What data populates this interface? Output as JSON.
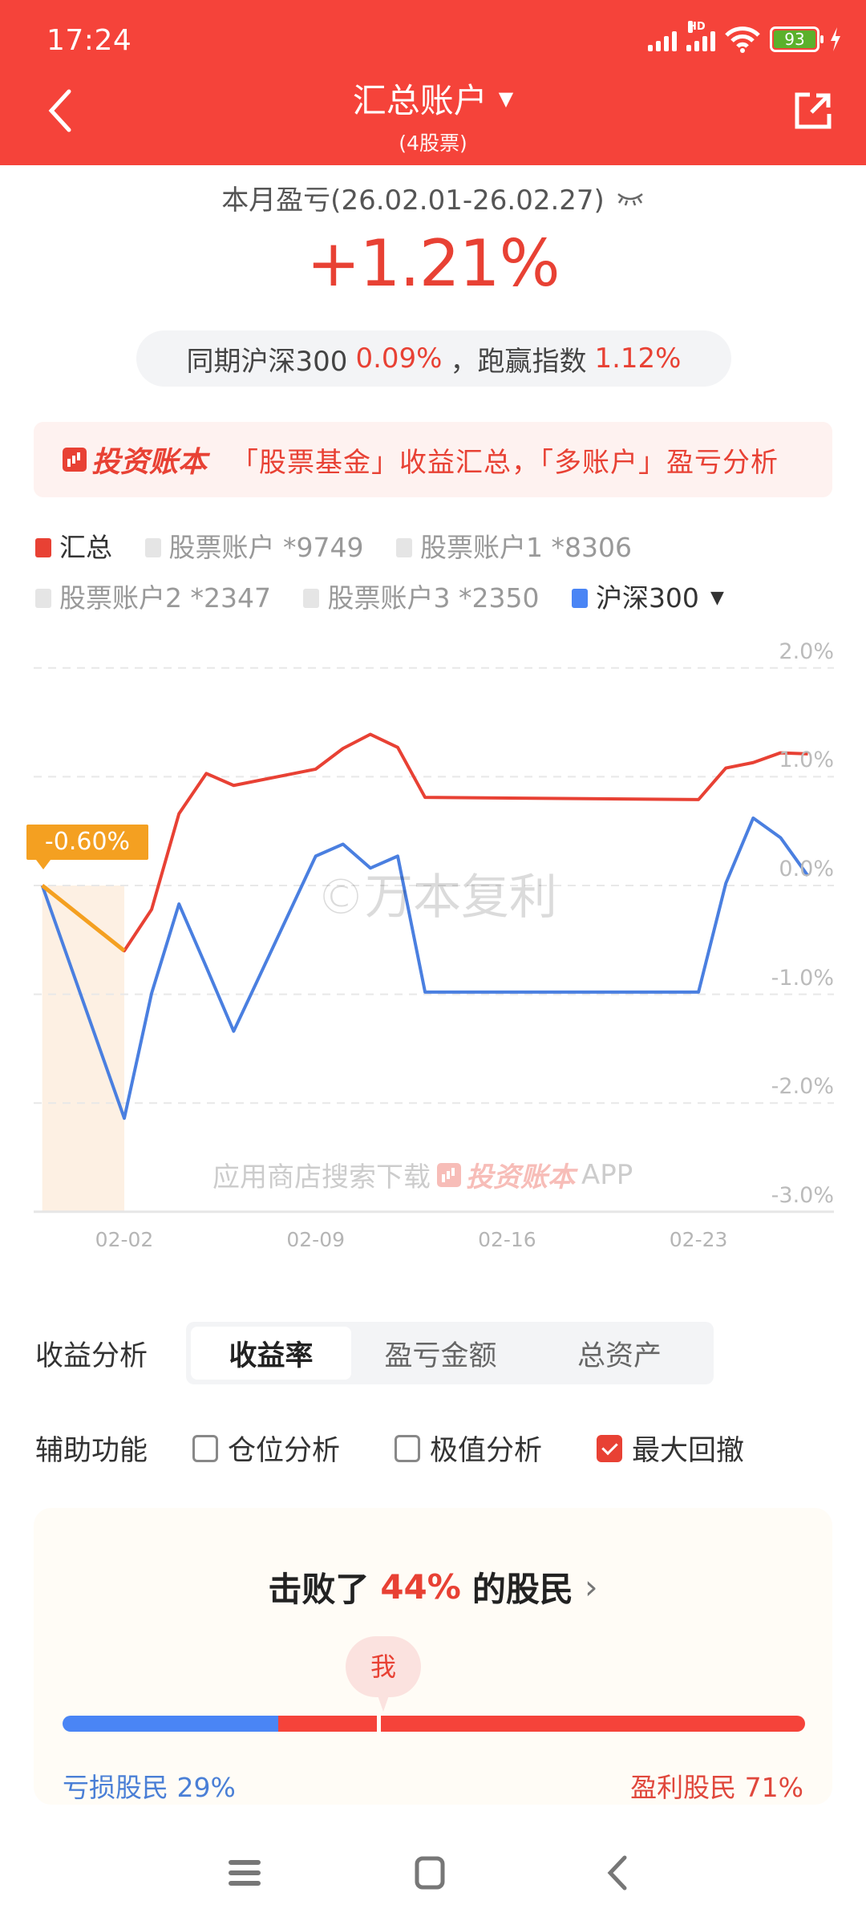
{
  "status_bar": {
    "time": "17:24",
    "network": "HD",
    "battery": "93"
  },
  "header": {
    "title": "汇总账户",
    "subtitle": "(4股票)",
    "dropdown_icon": "triangle-down",
    "back_icon": "chevron-left",
    "share_icon": "share-external"
  },
  "summary": {
    "period_label": "本月盈亏(26.02.01-26.02.27)",
    "visibility_icon": "closed-eye",
    "return_value": "+1.21%",
    "compare_prefix": "同期沪深300",
    "compare_index_value": "0.09%",
    "compare_mid": "，跑赢指数",
    "compare_excess_value": "1.12%"
  },
  "promo": {
    "brand": "投资账本",
    "text": "「股票基金」收益汇总，「多账户」盈亏分析"
  },
  "legend": [
    {
      "label": "汇总",
      "color": "#e84134",
      "active": true
    },
    {
      "label": "股票账户 *9749",
      "color": "#e5e5e5",
      "active": false
    },
    {
      "label": "股票账户1 *8306",
      "color": "#e5e5e5",
      "active": false
    },
    {
      "label": "股票账户2 *2347",
      "color": "#e5e5e5",
      "active": false
    },
    {
      "label": "股票账户3 *2350",
      "color": "#e5e5e5",
      "active": false
    },
    {
      "label": "沪深300",
      "color": "#4a85f5",
      "active": true,
      "dropdown": "▼"
    }
  ],
  "chart": {
    "watermark": "©万本复利",
    "download_prefix": "应用商店搜索下载",
    "download_brand": "投资账本",
    "download_suffix": "APP",
    "tooltip": "-0.60%"
  },
  "chart_data": {
    "type": "line",
    "title": "本月盈亏",
    "xlabel": "",
    "ylabel": "收益率",
    "x": [
      "01-30",
      "02-02",
      "02-03",
      "02-04",
      "02-05",
      "02-06",
      "02-09",
      "02-10",
      "02-11",
      "02-12",
      "02-13",
      "02-23",
      "02-24",
      "02-25",
      "02-26",
      "02-27"
    ],
    "x_day_offset": [
      -3,
      0,
      1,
      2,
      3,
      4,
      7,
      8,
      9,
      10,
      11,
      21,
      22,
      23,
      24,
      25
    ],
    "x_ticks": [
      "02-02",
      "02-09",
      "02-16",
      "02-23"
    ],
    "y_ticks": [
      "2.0%",
      "1.0%",
      "0.0%",
      "-1.0%",
      "-2.0%",
      "-3.0%"
    ],
    "ylim": [
      -3.0,
      2.0
    ],
    "grid": true,
    "series": [
      {
        "name": "汇总",
        "color": "#e84134",
        "values": [
          0.0,
          -0.6,
          -0.22,
          0.66,
          1.03,
          0.92,
          1.07,
          1.26,
          1.39,
          1.27,
          0.81,
          0.79,
          1.08,
          1.13,
          1.22,
          1.21
        ]
      },
      {
        "name": "沪深300",
        "color": "#4a7fe0",
        "values": [
          0.0,
          -2.14,
          -0.99,
          -0.17,
          -0.75,
          -1.34,
          0.27,
          0.38,
          0.16,
          0.27,
          -0.98,
          -0.98,
          0.02,
          0.62,
          0.44,
          0.09
        ]
      }
    ],
    "annotations": [
      {
        "type": "max_drawdown",
        "from": "01-30",
        "to": "02-02",
        "value": "-0.60%",
        "color": "#f4a021"
      }
    ]
  },
  "analysis": {
    "label": "收益分析",
    "tabs": [
      {
        "label": "收益率",
        "active": true
      },
      {
        "label": "盈亏金额",
        "active": false
      },
      {
        "label": "总资产",
        "active": false
      }
    ]
  },
  "aux": {
    "label": "辅助功能",
    "options": [
      {
        "label": "仓位分析",
        "checked": false
      },
      {
        "label": "极值分析",
        "checked": false
      },
      {
        "label": "最大回撤",
        "checked": true
      }
    ]
  },
  "rank": {
    "prefix": "击败了",
    "percent": "44%",
    "suffix": "的股民",
    "me_label": "我",
    "loss_label": "亏损股民 29%",
    "gain_label": "盈利股民 71%",
    "loss_pct": 29,
    "gain_pct": 71
  },
  "navbar": {
    "menu_icon": "menu",
    "home_icon": "square",
    "back_icon": "chevron-left"
  }
}
